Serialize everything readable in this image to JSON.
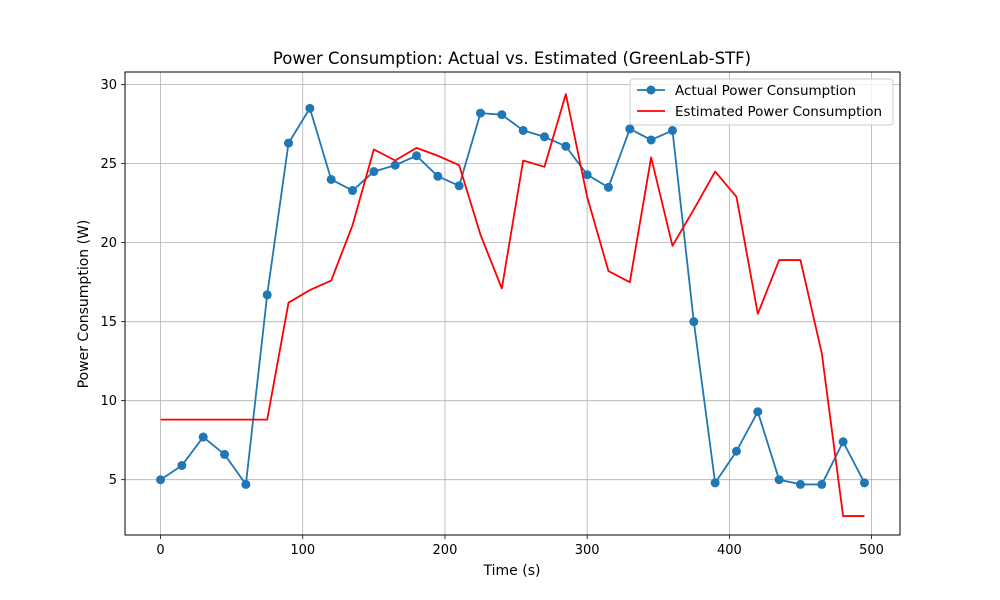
{
  "chart_data": {
    "type": "line",
    "title": "Power Consumption: Actual vs. Estimated (GreenLab-STF)",
    "xlabel": "Time (s)",
    "ylabel": "Power Consumption (W)",
    "xlim": [
      -25,
      520
    ],
    "ylim": [
      1.5,
      30.8
    ],
    "xticks": [
      0,
      100,
      200,
      300,
      400,
      500
    ],
    "yticks": [
      5,
      10,
      15,
      20,
      25,
      30
    ],
    "grid": true,
    "legend_position": "top-right",
    "x": [
      0,
      15,
      30,
      45,
      60,
      75,
      90,
      105,
      120,
      135,
      150,
      165,
      180,
      195,
      210,
      225,
      240,
      255,
      270,
      285,
      300,
      315,
      330,
      345,
      360,
      375,
      390,
      405,
      420,
      435,
      450,
      465,
      480,
      495
    ],
    "series": [
      {
        "name": "Actual Power Consumption",
        "color": "#1f77b4",
        "marker": "circle",
        "values": [
          5.0,
          5.9,
          7.7,
          6.6,
          4.7,
          16.7,
          26.3,
          28.5,
          24.0,
          23.3,
          24.5,
          24.9,
          25.5,
          24.2,
          23.6,
          28.2,
          28.1,
          27.1,
          26.7,
          26.1,
          24.3,
          23.5,
          27.2,
          26.5,
          27.1,
          15.0,
          4.8,
          6.8,
          9.3,
          5.0,
          4.7,
          4.7,
          7.4,
          4.8
        ]
      },
      {
        "name": "Estimated Power Consumption",
        "color": "#ff0000",
        "marker": "none",
        "values": [
          8.8,
          8.8,
          8.8,
          8.8,
          8.8,
          8.8,
          16.2,
          17.0,
          17.6,
          21.1,
          25.9,
          25.2,
          26.0,
          25.5,
          24.9,
          20.5,
          17.1,
          25.2,
          24.8,
          29.4,
          22.9,
          18.2,
          17.5,
          25.4,
          19.8,
          22.1,
          24.5,
          22.9,
          15.5,
          18.9,
          18.9,
          13.0,
          2.7,
          2.7
        ]
      }
    ]
  }
}
